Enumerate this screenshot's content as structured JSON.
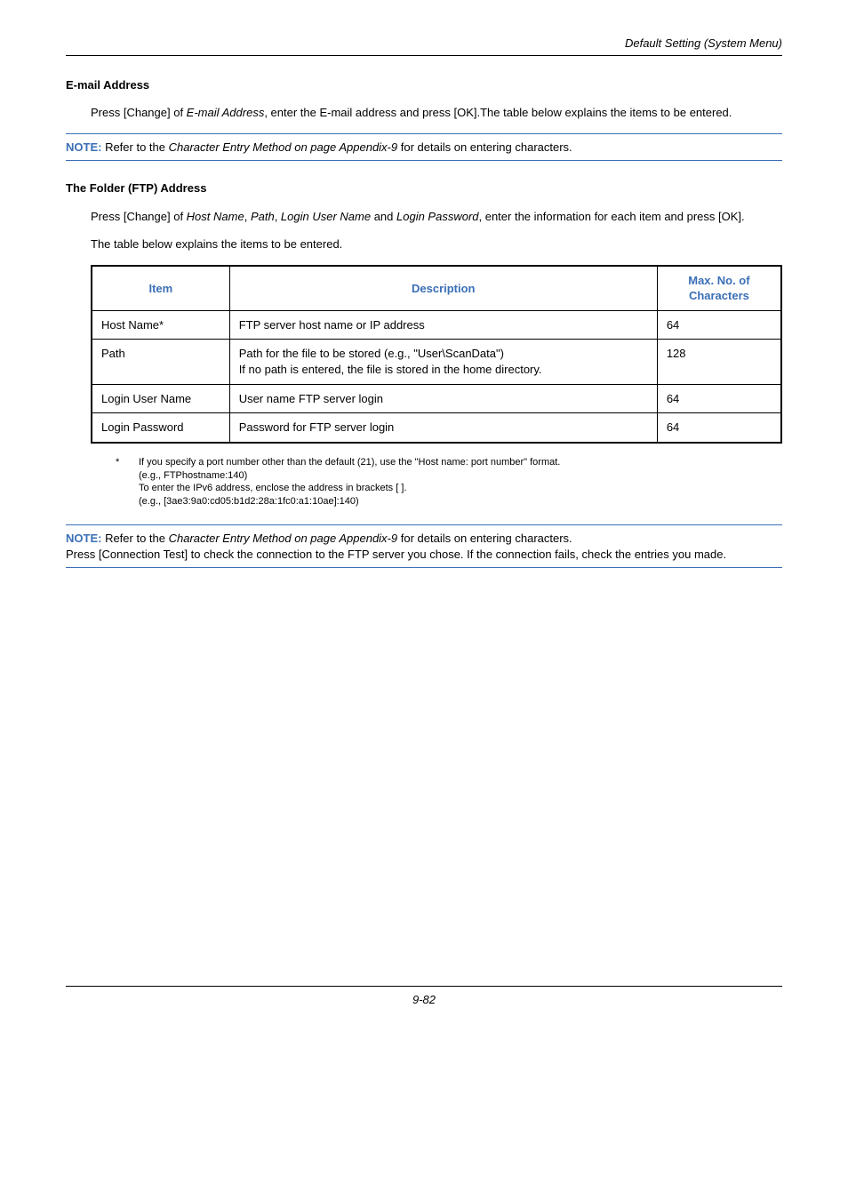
{
  "colors": {
    "accent": "#3b6fb6",
    "text": "#000000",
    "border": "#000000",
    "rule": "#3b6fb6"
  },
  "header": {
    "title": "Default Setting (System Menu)"
  },
  "sections": {
    "email": {
      "heading": "E-mail Address",
      "para_pre": "Press [Change] of ",
      "para_italic": "E-mail Address",
      "para_post": ", enter the E-mail address and press [OK].The table below explains the items to be entered."
    },
    "note1": {
      "label": "NOTE:",
      "pre": " Refer to the ",
      "italic": "Character Entry Method on page Appendix-9",
      "post": " for details on entering characters."
    },
    "ftp": {
      "heading": "The Folder (FTP) Address",
      "para1_pre": "Press [Change] of ",
      "para1_i1": "Host Name",
      "para1_sep1": ", ",
      "para1_i2": "Path",
      "para1_sep2": ", ",
      "para1_i3": "Login User Name",
      "para1_sep3": " and ",
      "para1_i4": "Login Password",
      "para1_post": ", enter the information for each item and press [OK].",
      "para2": "The table below explains the items to be entered."
    },
    "table": {
      "columns": [
        "Item",
        "Description",
        "Max. No. of Characters"
      ],
      "col_widths_pct": [
        20,
        62,
        18
      ],
      "rows": [
        {
          "item": "Host Name*",
          "desc": "FTP server host name or IP address",
          "max": "64"
        },
        {
          "item": "Path",
          "desc": "Path for the file to be stored (e.g., \"User\\ScanData\")\nIf no path is entered, the file is stored in the home directory.",
          "max": "128"
        },
        {
          "item": "Login User Name",
          "desc": "User name FTP server login",
          "max": "64"
        },
        {
          "item": "Login Password",
          "desc": "Password for FTP server login",
          "max": "64"
        }
      ]
    },
    "footnote": {
      "star": "*",
      "line1": "If you specify a port number other than the default (21), use the \"Host name: port number\" format.",
      "line2": "(e.g., FTPhostname:140)",
      "line3": "To enter the IPv6 address, enclose the address in brackets [ ].",
      "line4": "(e.g., [3ae3:9a0:cd05:b1d2:28a:1fc0:a1:10ae]:140)"
    },
    "note2": {
      "label": "NOTE:",
      "pre": " Refer to the ",
      "italic": "Character Entry Method on page Appendix-9",
      "post": " for details on entering characters.",
      "line2": "Press [Connection Test] to check the connection to the FTP server you chose. If the connection fails, check the entries you made."
    }
  },
  "footer": {
    "page": "9-82"
  }
}
